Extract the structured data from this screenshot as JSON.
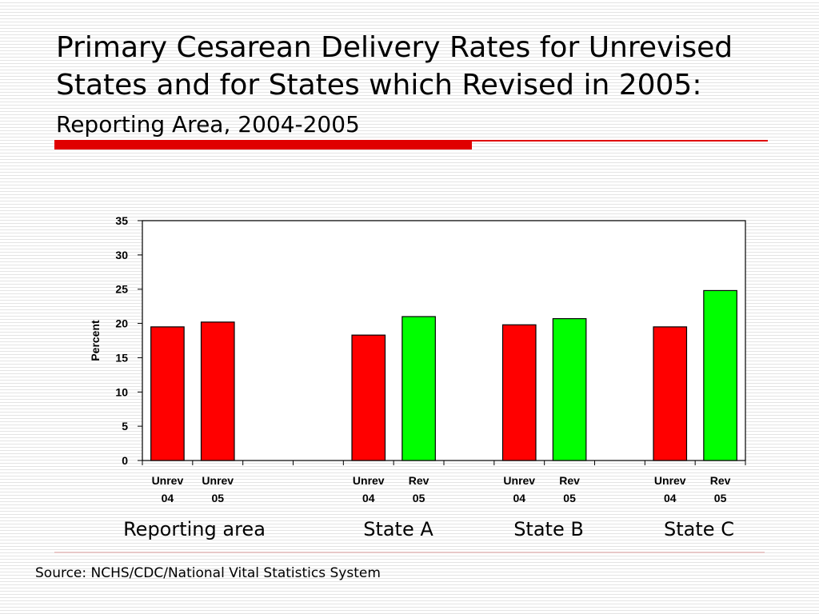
{
  "title": {
    "main": "Primary Cesarean Delivery Rates for Unrevised States and for States which Revised in 2005:",
    "sub": "Reporting Area, 2004-2005"
  },
  "source": "Source: NCHS/CDC/National Vital Statistics System",
  "colors": {
    "unrevised": "#ff0000",
    "revised": "#00ff00",
    "title_rule": "#e00000"
  },
  "chart_data": {
    "type": "bar",
    "ylabel": "Percent",
    "ylim": [
      0,
      35
    ],
    "yticks": [
      0,
      5,
      10,
      15,
      20,
      25,
      30,
      35
    ],
    "grid": false,
    "groups": [
      "Reporting area",
      "State A",
      "State B",
      "State C"
    ],
    "slots": [
      {
        "line1": "Unrev",
        "line2": "04",
        "value": 19.5,
        "status": "unrevised"
      },
      {
        "line1": "Unrev",
        "line2": "05",
        "value": 20.2,
        "status": "unrevised"
      },
      null,
      null,
      {
        "line1": "Unrev",
        "line2": "04",
        "value": 18.3,
        "status": "unrevised"
      },
      {
        "line1": "Rev",
        "line2": "05",
        "value": 21.0,
        "status": "revised"
      },
      null,
      {
        "line1": "Unrev",
        "line2": "04",
        "value": 19.8,
        "status": "unrevised"
      },
      {
        "line1": "Rev",
        "line2": "05",
        "value": 20.7,
        "status": "revised"
      },
      null,
      {
        "line1": "Unrev",
        "line2": "04",
        "value": 19.5,
        "status": "unrevised"
      },
      {
        "line1": "Rev",
        "line2": "05",
        "value": 24.8,
        "status": "revised"
      }
    ]
  }
}
